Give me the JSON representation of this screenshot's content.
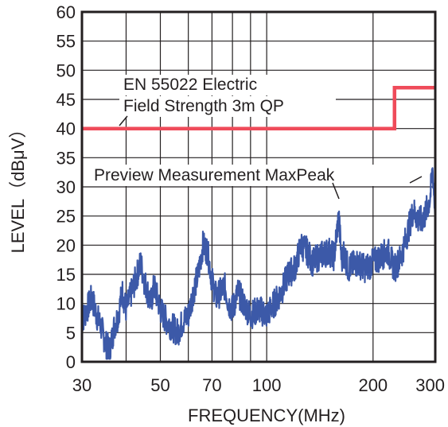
{
  "chart_data": {
    "type": "line",
    "xlabel": "FREQUENCY(MHz)",
    "ylabel": "LEVEL（dBμV）",
    "x_scale": "log",
    "xlim": [
      30,
      300
    ],
    "ylim": [
      0,
      60
    ],
    "x_ticks": [
      30,
      50,
      70,
      100,
      200,
      300
    ],
    "x_tick_labels": [
      "30",
      "50",
      "70",
      "100",
      "200",
      "300"
    ],
    "x_gridlines": [
      30,
      40,
      50,
      60,
      70,
      80,
      90,
      100,
      200,
      300
    ],
    "y_ticks": [
      0,
      5,
      10,
      15,
      20,
      25,
      30,
      35,
      40,
      45,
      50,
      55,
      60
    ],
    "y_tick_labels": [
      "0",
      "5",
      "10",
      "15",
      "20",
      "25",
      "30",
      "35",
      "40",
      "45",
      "50",
      "55",
      "60"
    ],
    "grid": true,
    "colors": {
      "limit": "#ef4b5a",
      "measurement": "#3c59a8",
      "grid": "#231f20"
    },
    "series": [
      {
        "name": "EN 55022 Electric Field Strength 3m QP",
        "kind": "limit",
        "x": [
          30,
          230,
          230,
          300
        ],
        "y": [
          40,
          40,
          47,
          47
        ]
      },
      {
        "name": "Preview Measurement MaxPeak",
        "kind": "measurement",
        "x": [
          30,
          31,
          32,
          33,
          34,
          35,
          36,
          37,
          38,
          39,
          40,
          41,
          42,
          43,
          44,
          45,
          46,
          47,
          48,
          50,
          52,
          54,
          56,
          58,
          60,
          62,
          64,
          66,
          68,
          70,
          72,
          74,
          76,
          78,
          80,
          83,
          86,
          90,
          95,
          100,
          105,
          110,
          115,
          120,
          125,
          130,
          135,
          140,
          150,
          155,
          160,
          163,
          165,
          170,
          180,
          190,
          200,
          210,
          220,
          230,
          240,
          250,
          260,
          270,
          280,
          290,
          295,
          300
        ],
        "y": [
          7,
          9,
          11,
          8,
          6,
          3,
          2,
          6,
          8,
          12,
          9,
          11,
          13,
          15,
          17,
          14,
          12,
          10,
          13,
          9,
          7,
          6,
          5,
          7,
          8,
          12,
          15,
          20,
          19,
          14,
          11,
          12,
          13,
          10,
          9,
          12,
          10,
          8,
          9,
          8,
          10,
          12,
          15,
          16,
          20,
          19,
          17,
          18,
          19,
          18,
          25,
          17,
          19,
          16,
          17,
          16,
          17,
          18,
          19,
          16,
          18,
          22,
          26,
          24,
          25,
          28,
          33,
          25
        ]
      }
    ],
    "annotations": [
      {
        "lines": [
          "EN 55022 Electric",
          "Field Strength 3m QP"
        ],
        "target": "limit"
      },
      {
        "lines": [
          "Preview Measurement MaxPeak"
        ],
        "target": "measurement"
      }
    ]
  }
}
